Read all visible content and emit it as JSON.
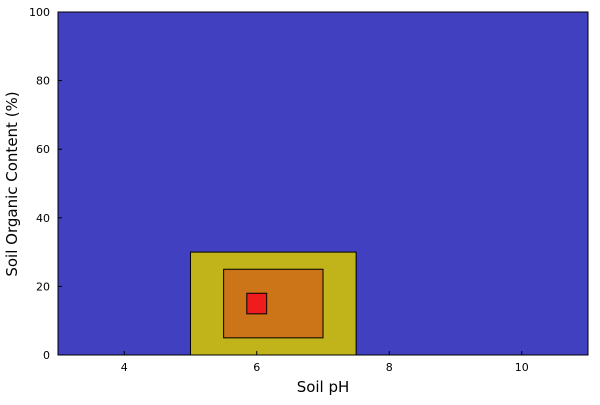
{
  "chart_data": {
    "type": "area",
    "title": "",
    "xlabel": "Soil pH",
    "ylabel": "Soil Organic Content (%)",
    "xlim": [
      3,
      11
    ],
    "ylim": [
      0,
      100
    ],
    "xticks": [
      4,
      6,
      8,
      10
    ],
    "yticks": [
      0,
      20,
      40,
      60,
      80,
      100
    ],
    "grid": false,
    "legend": "none",
    "regions": [
      {
        "x": [
          3,
          11
        ],
        "y": [
          0,
          100
        ],
        "color": "#4040c0"
      },
      {
        "x": [
          5,
          7.5
        ],
        "y": [
          0,
          30
        ],
        "color": "#c0b41a"
      },
      {
        "x": [
          5.5,
          7
        ],
        "y": [
          5,
          25
        ],
        "color": "#cc7518"
      },
      {
        "x": [
          5.85,
          6.15
        ],
        "y": [
          12,
          18
        ],
        "color": "#ee1c1c"
      }
    ]
  }
}
